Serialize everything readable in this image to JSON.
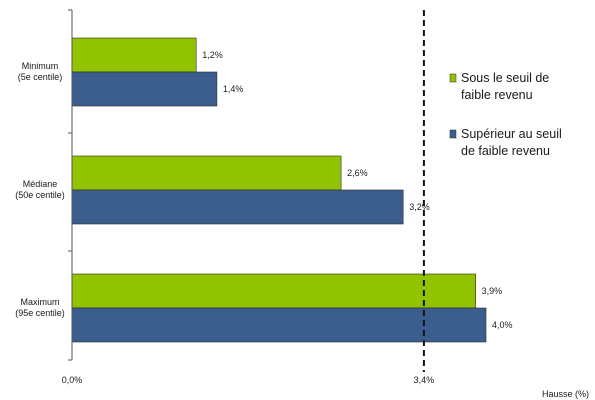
{
  "chart_data": {
    "type": "bar",
    "orientation": "horizontal",
    "categories": [
      [
        "Minimum",
        "(5e centile)"
      ],
      [
        "Médiane",
        "(50e centile)"
      ],
      [
        "Maximum",
        "(95e centile)"
      ]
    ],
    "series": [
      {
        "name": [
          "Sous le seuil de",
          "faible revenu"
        ],
        "color": "#92c300",
        "values": [
          1.2,
          2.6,
          3.9
        ],
        "labels": [
          "1,2%",
          "2,6%",
          "3,9%"
        ]
      },
      {
        "name": [
          "Supérieur au seuil",
          "de faible revenu"
        ],
        "color": "#3b5e8e",
        "values": [
          1.4,
          3.2,
          4.0
        ],
        "labels": [
          "1,4%",
          "3,2%",
          "4,0%"
        ]
      }
    ],
    "xlabel": "Hausse (%)",
    "ticks": [
      {
        "value": 0,
        "label": "0,0%"
      },
      {
        "value": 3.4,
        "label": "3,4%"
      }
    ],
    "reference_line": {
      "value": 3.4,
      "style": "dashed"
    },
    "legend_position": "right",
    "grid": false
  }
}
